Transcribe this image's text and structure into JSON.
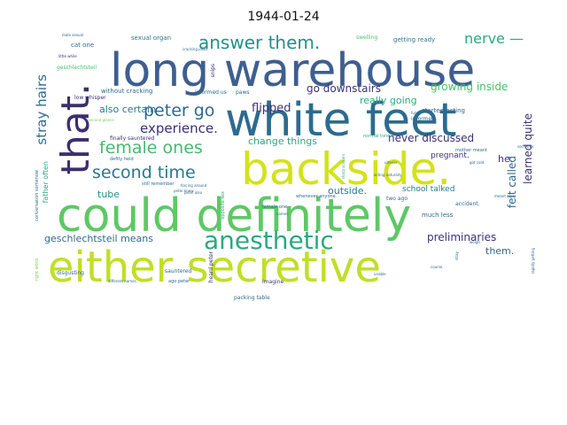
{
  "title": "1944-01-24",
  "words": {
    "long_warehouse": "long warehouse",
    "white_feet": "white feet",
    "that": "that.",
    "backside": "backside.",
    "could_definitely": "could definitely",
    "either_secretive": "either secretive",
    "anesthetic": "anesthetic",
    "answer_them": "answer them.",
    "nerve": "nerve —",
    "peter_go": "peter go",
    "female_ones": "female ones",
    "second_time": "second time",
    "experience": "experience.",
    "stray_hairs": "stray hairs",
    "also_certain": "also certain",
    "flipped": "flipped",
    "go_downstairs": "go downstairs",
    "growing_inside": "growing inside",
    "really_going": "really going",
    "learned_quite": "learned quite",
    "felt_called": "felt called",
    "never_discussed": "never discussed",
    "change_things": "change things",
    "geschlechtsteil_means": "geschlechtsteil means",
    "preliminaries": "preliminaries",
    "them": "them.",
    "outside": "outside.",
    "school_talked": "school talked",
    "pregnant": "pregnant.",
    "tube": "tube",
    "he": "he.",
    "sexual_organ": "sexual organ",
    "cat_one": "cat one",
    "getting_ready": "getting ready",
    "swelling": "swelling",
    "geschlechtsteil": "geschlechtsteil",
    "without_cracking": "without cracking",
    "informed_us": "informed us",
    "low_whisper": "low whisper",
    "snips": "snips",
    "paws": "paws",
    "finally_sauntered": "finally sauntered",
    "deftly_held": "deftly held",
    "started_acting": "started acting",
    "informed": "informed",
    "normal_tone": "normal tone",
    "mother_meant": "mother meant",
    "father_often": "father often",
    "still_remember": "still remember",
    "conversation_somehow": "conversation somehow",
    "disgusting": "disgusting",
    "sauntered": "sauntered",
    "imagine": "imagine",
    "packing_table": "packing table",
    "heard_peter": "heard peter",
    "whenever_anyone": "whenever anyone",
    "female_one": "female one",
    "two_ago": "two ago",
    "much_less": "much less",
    "accident": "accident.",
    "right_word": "right word",
    "ago_peter": "ago peter",
    "male_sexual": "male sexual",
    "second_glance": "second glance",
    "opposite_sex": "opposite sex",
    "little_while": "little while",
    "cracking_jokes": "cracking jokes",
    "forcing_around": "forcing around",
    "peter_knew": "peter knew",
    "got_cold": "got cold",
    "meant_reply": "meant reply",
    "ulterior": "ulterior",
    "acting_naturally": "acting naturally",
    "stray": "stray",
    "weigh": "weigh",
    "course": "course.",
    "unable": "unable",
    "rapidly_getting": "rapidly getting",
    "names": "names.",
    "different_names": "different names.",
    "secretive": "secretive",
    "funny": "funny",
    "sharp_scissors": "sharp scissors",
    "peter_also": "peter also"
  },
  "colors": {
    "dark_navy": "#3b3175",
    "steel_blue": "#2f6a8e",
    "teal_blue": "#2a788e",
    "teal": "#22908c",
    "green_teal": "#2aa97f",
    "green": "#48c16e",
    "light_green": "#7ad151",
    "yellow_green": "#c0df25",
    "yellow": "#d4e21a"
  }
}
